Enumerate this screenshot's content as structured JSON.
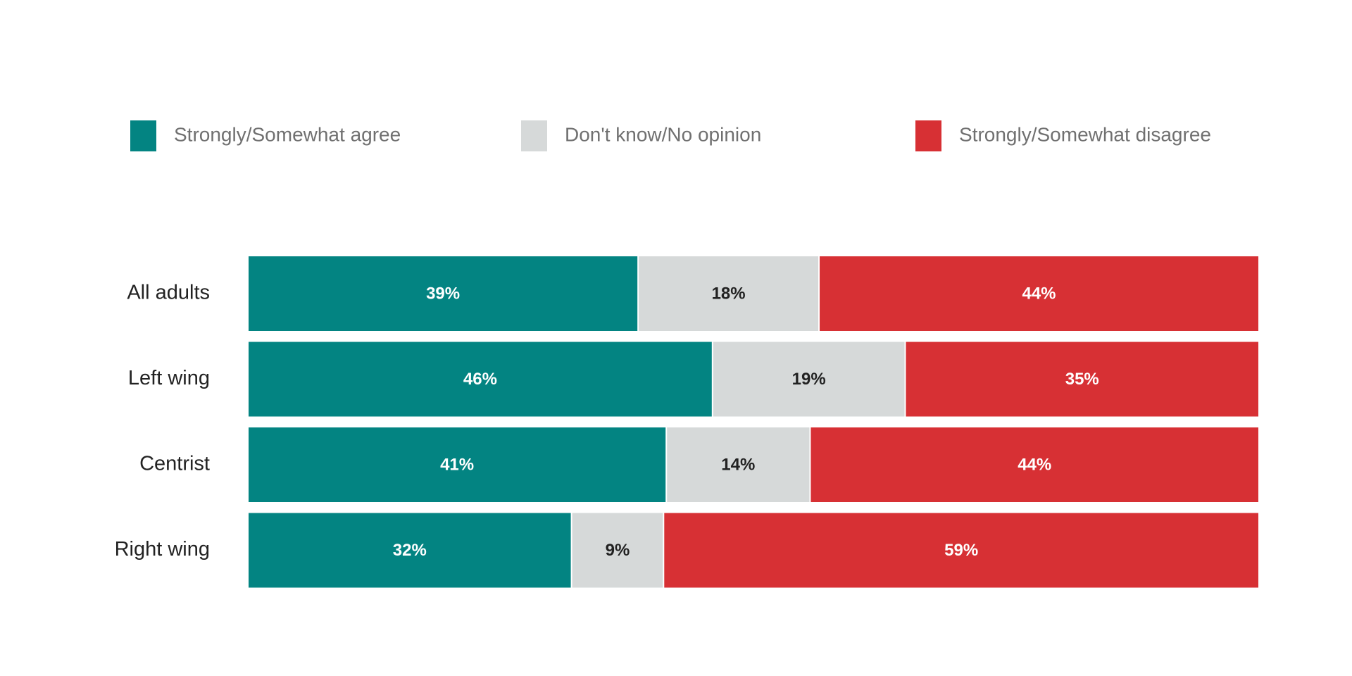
{
  "chart_data": {
    "type": "bar",
    "orientation": "horizontal",
    "stacked": true,
    "categories": [
      "All adults",
      "Left wing",
      "Centrist",
      "Right wing"
    ],
    "series": [
      {
        "name": "Strongly/Somewhat agree",
        "values": [
          39,
          46,
          41,
          32
        ],
        "color": "#038482",
        "label_color": "#ffffff"
      },
      {
        "name": "Don't know/No opinion",
        "values": [
          18,
          19,
          14,
          9
        ],
        "color": "#d6d9d9",
        "label_color": "#222222"
      },
      {
        "name": "Strongly/Somewhat disagree",
        "values": [
          44,
          35,
          44,
          59
        ],
        "color": "#d73034",
        "label_color": "#ffffff"
      }
    ],
    "value_suffix": "%",
    "legend_position": "top",
    "grid": false
  }
}
